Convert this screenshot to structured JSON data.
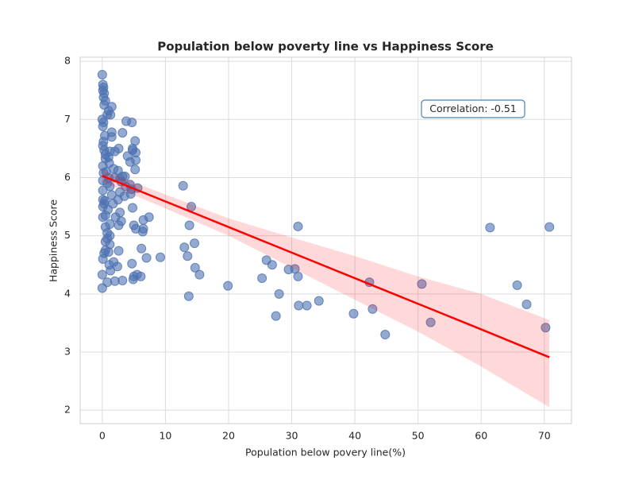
{
  "chart_data": {
    "type": "scatter",
    "title": "Population below poverty line vs Happiness Score",
    "x_label": "Population below povery line(%)",
    "y_label": "Happiness Score",
    "annotation": "Correlation: -0.51",
    "color": "#4c72b0",
    "grid": true,
    "xlim": [
      -3.5,
      74.3
    ],
    "ylim": [
      1.77,
      8.07
    ],
    "xticks": [
      0,
      10,
      20,
      30,
      40,
      50,
      60,
      70
    ],
    "yticks": [
      2,
      3,
      4,
      5,
      6,
      7,
      8
    ],
    "x": [
      0,
      0.1,
      0.2,
      0.1,
      0.3,
      0.2,
      0.5,
      0.3,
      1.5,
      1,
      0.8,
      1.3,
      0,
      0.2,
      0.1,
      3.8,
      4.7,
      1.5,
      3.2,
      0.4,
      1.5,
      0.2,
      5.2,
      0.1,
      4.8,
      2.6,
      0.3,
      1.2,
      2,
      4.8,
      5.3,
      4,
      0.5,
      5.3,
      4.4,
      1.1,
      0.1,
      1.8,
      2.5,
      5.2,
      0.2,
      3.2,
      3.6,
      1,
      2,
      2.8,
      0.1,
      3,
      4.4,
      1.2,
      3.7,
      5.6,
      4.6,
      0.1,
      2.8,
      4.5,
      1.5,
      3.5,
      0.1,
      2.5,
      1.7,
      0.3,
      0.1,
      4.8,
      2.8,
      0.5,
      2.1,
      7.4,
      3,
      0.1,
      6.5,
      1.2,
      5,
      0.5,
      2.6,
      5.3,
      6.5,
      6.4,
      0.8,
      1.2,
      0.8,
      0.5,
      1.2,
      6.2,
      0.5,
      2.6,
      0.3,
      1,
      0.1,
      7,
      1.8,
      4.7,
      1.1,
      2.4,
      1.3,
      5.5,
      5,
      6.1,
      4.9,
      3.2,
      2,
      0.8,
      0,
      0,
      12.8,
      14.1,
      13.8,
      13,
      14.6,
      13.5,
      9.2,
      14.7,
      15.4,
      13.7,
      19.9,
      26,
      26.9,
      31,
      29.5,
      30.5,
      31,
      25.3,
      28,
      27.5,
      31.1,
      32.4,
      34.3,
      39.8,
      42.3,
      42.8,
      44.8,
      50.6,
      52,
      61.4,
      65.7,
      67.2,
      70.2,
      70.8,
      0.5,
      1,
      0.6,
      0.8,
      0.4,
      0.9
    ],
    "values": [
      7.77,
      7.6,
      7.55,
      7.5,
      7.45,
      7.38,
      7.32,
      7.25,
      7.22,
      7.15,
      7.08,
      7.08,
      7,
      6.95,
      6.88,
      6.97,
      6.95,
      6.78,
      6.77,
      6.72,
      6.7,
      6.62,
      6.63,
      6.55,
      6.5,
      6.5,
      6.47,
      6.45,
      6.45,
      6.47,
      6.43,
      6.37,
      6.33,
      6.3,
      6.27,
      6.25,
      6.2,
      6.15,
      6.12,
      6.14,
      6.08,
      6.02,
      6.02,
      6,
      6,
      5.98,
      5.95,
      5.93,
      5.88,
      5.85,
      5.85,
      5.82,
      5.8,
      5.78,
      5.75,
      5.72,
      5.7,
      5.68,
      5.62,
      5.62,
      5.55,
      5.55,
      5.5,
      5.48,
      5.4,
      5.35,
      5.32,
      5.32,
      5.25,
      5.32,
      5.27,
      5.2,
      5.18,
      5.15,
      5.18,
      5.12,
      5.12,
      5.07,
      5.05,
      5,
      4.95,
      4.9,
      4.85,
      4.78,
      4.75,
      4.74,
      4.7,
      4.72,
      4.6,
      4.62,
      4.55,
      4.52,
      4.5,
      4.47,
      4.4,
      4.33,
      4.3,
      4.3,
      4.25,
      4.23,
      4.22,
      4.2,
      4.33,
      4.1,
      5.86,
      5.5,
      5.18,
      4.8,
      4.87,
      4.65,
      4.63,
      4.45,
      4.33,
      3.96,
      4.14,
      4.58,
      4.5,
      5.16,
      4.42,
      4.43,
      4.3,
      4.27,
      4,
      3.62,
      3.8,
      3.8,
      3.88,
      3.66,
      4.2,
      3.74,
      3.3,
      4.17,
      3.51,
      5.14,
      4.15,
      3.82,
      3.42,
      5.15,
      6.4,
      6.35,
      6.1,
      5.9,
      5.6,
      5.45
    ],
    "regression": {
      "color": "#ff0000",
      "x": [
        0,
        10,
        20,
        30,
        40,
        50,
        60,
        70.8
      ],
      "y": [
        6.03,
        5.59,
        5.15,
        4.71,
        4.27,
        3.83,
        3.39,
        2.91
      ],
      "lower": [
        5.93,
        5.47,
        5.0,
        4.45,
        3.9,
        3.35,
        2.75,
        2.05
      ],
      "upper": [
        6.13,
        5.71,
        5.3,
        4.97,
        4.65,
        4.3,
        4.0,
        3.55
      ]
    }
  }
}
